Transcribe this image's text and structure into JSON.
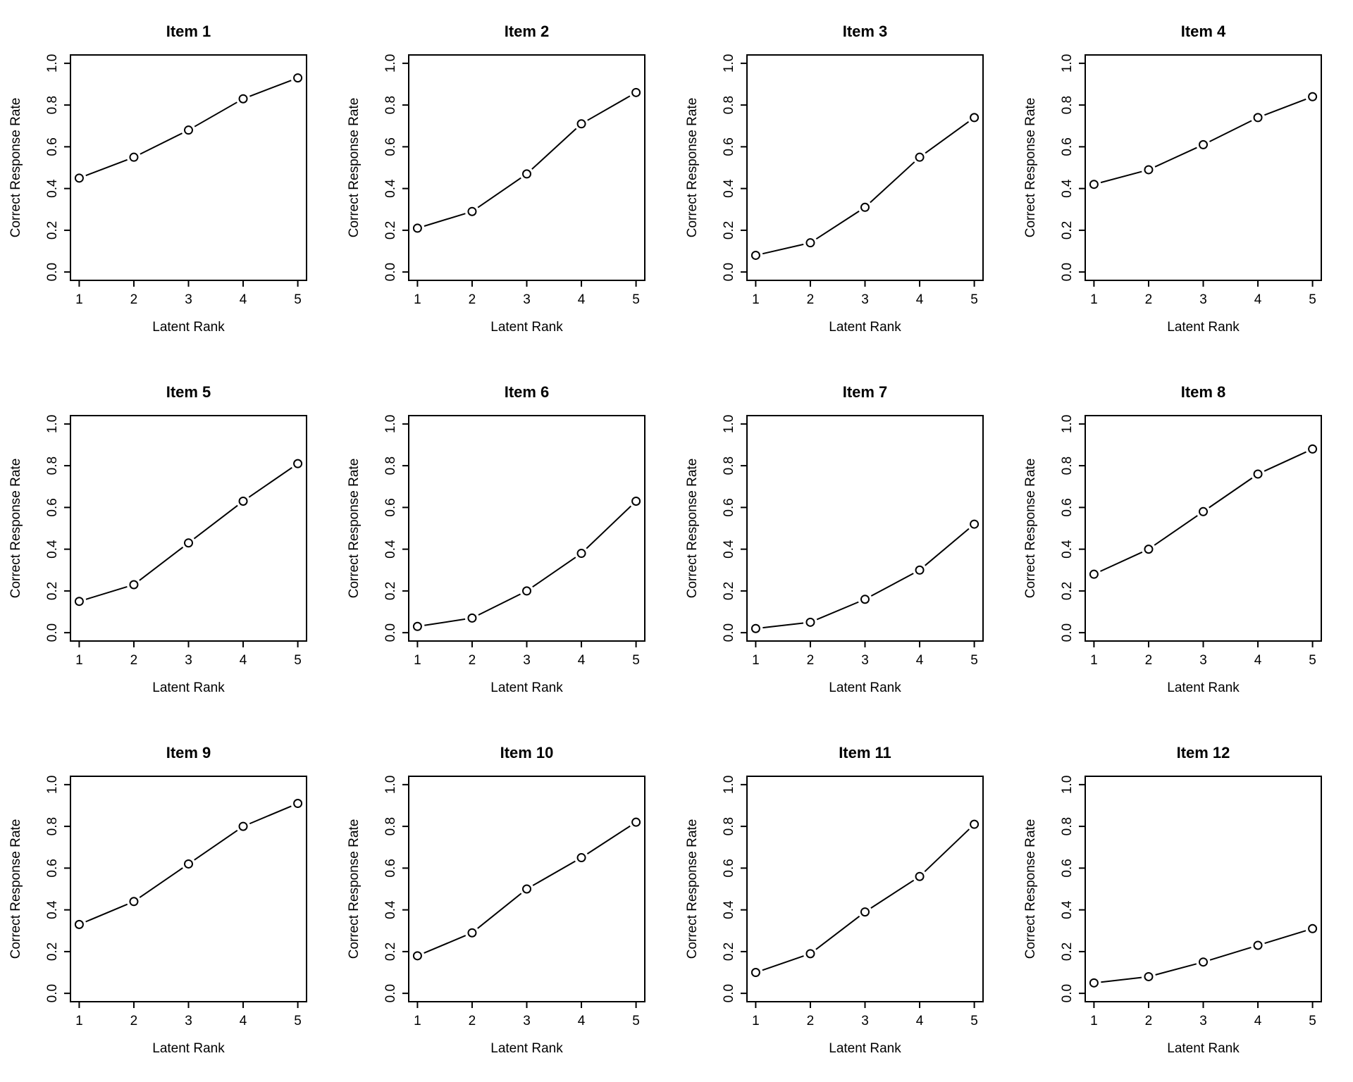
{
  "page": {
    "background": "#ffffff",
    "foreground": "#000000",
    "layout": {
      "rows": 3,
      "columns": 4
    }
  },
  "chart_data": [
    {
      "type": "line",
      "title": "Item 1",
      "xlabel": "Latent Rank",
      "ylabel": "Correct Response Rate",
      "x": [
        1,
        2,
        3,
        4,
        5
      ],
      "values": [
        0.45,
        0.55,
        0.68,
        0.83,
        0.93
      ],
      "xlim": [
        1,
        5
      ],
      "ylim": [
        0,
        1
      ],
      "xticks": [
        1,
        2,
        3,
        4,
        5
      ],
      "yticks": [
        0,
        0.2,
        0.4,
        0.6,
        0.8,
        1
      ],
      "marker": "open-circle",
      "color": "#000000",
      "grid": false
    },
    {
      "type": "line",
      "title": "Item 2",
      "xlabel": "Latent Rank",
      "ylabel": "Correct Response Rate",
      "x": [
        1,
        2,
        3,
        4,
        5
      ],
      "values": [
        0.21,
        0.29,
        0.47,
        0.71,
        0.86
      ],
      "xlim": [
        1,
        5
      ],
      "ylim": [
        0,
        1
      ],
      "xticks": [
        1,
        2,
        3,
        4,
        5
      ],
      "yticks": [
        0,
        0.2,
        0.4,
        0.6,
        0.8,
        1
      ],
      "marker": "open-circle",
      "color": "#000000",
      "grid": false
    },
    {
      "type": "line",
      "title": "Item 3",
      "xlabel": "Latent Rank",
      "ylabel": "Correct Response Rate",
      "x": [
        1,
        2,
        3,
        4,
        5
      ],
      "values": [
        0.08,
        0.14,
        0.31,
        0.55,
        0.74
      ],
      "xlim": [
        1,
        5
      ],
      "ylim": [
        0,
        1
      ],
      "xticks": [
        1,
        2,
        3,
        4,
        5
      ],
      "yticks": [
        0,
        0.2,
        0.4,
        0.6,
        0.8,
        1
      ],
      "marker": "open-circle",
      "color": "#000000",
      "grid": false
    },
    {
      "type": "line",
      "title": "Item 4",
      "xlabel": "Latent Rank",
      "ylabel": "Correct Response Rate",
      "x": [
        1,
        2,
        3,
        4,
        5
      ],
      "values": [
        0.42,
        0.49,
        0.61,
        0.74,
        0.84
      ],
      "xlim": [
        1,
        5
      ],
      "ylim": [
        0,
        1
      ],
      "xticks": [
        1,
        2,
        3,
        4,
        5
      ],
      "yticks": [
        0,
        0.2,
        0.4,
        0.6,
        0.8,
        1
      ],
      "marker": "open-circle",
      "color": "#000000",
      "grid": false
    },
    {
      "type": "line",
      "title": "Item 5",
      "xlabel": "Latent Rank",
      "ylabel": "Correct Response Rate",
      "x": [
        1,
        2,
        3,
        4,
        5
      ],
      "values": [
        0.15,
        0.23,
        0.43,
        0.63,
        0.81
      ],
      "xlim": [
        1,
        5
      ],
      "ylim": [
        0,
        1
      ],
      "xticks": [
        1,
        2,
        3,
        4,
        5
      ],
      "yticks": [
        0,
        0.2,
        0.4,
        0.6,
        0.8,
        1
      ],
      "marker": "open-circle",
      "color": "#000000",
      "grid": false
    },
    {
      "type": "line",
      "title": "Item 6",
      "xlabel": "Latent Rank",
      "ylabel": "Correct Response Rate",
      "x": [
        1,
        2,
        3,
        4,
        5
      ],
      "values": [
        0.03,
        0.07,
        0.2,
        0.38,
        0.63
      ],
      "xlim": [
        1,
        5
      ],
      "ylim": [
        0,
        1
      ],
      "xticks": [
        1,
        2,
        3,
        4,
        5
      ],
      "yticks": [
        0,
        0.2,
        0.4,
        0.6,
        0.8,
        1
      ],
      "marker": "open-circle",
      "color": "#000000",
      "grid": false
    },
    {
      "type": "line",
      "title": "Item 7",
      "xlabel": "Latent Rank",
      "ylabel": "Correct Response Rate",
      "x": [
        1,
        2,
        3,
        4,
        5
      ],
      "values": [
        0.02,
        0.05,
        0.16,
        0.3,
        0.52
      ],
      "xlim": [
        1,
        5
      ],
      "ylim": [
        0,
        1
      ],
      "xticks": [
        1,
        2,
        3,
        4,
        5
      ],
      "yticks": [
        0,
        0.2,
        0.4,
        0.6,
        0.8,
        1
      ],
      "marker": "open-circle",
      "color": "#000000",
      "grid": false
    },
    {
      "type": "line",
      "title": "Item 8",
      "xlabel": "Latent Rank",
      "ylabel": "Correct Response Rate",
      "x": [
        1,
        2,
        3,
        4,
        5
      ],
      "values": [
        0.28,
        0.4,
        0.58,
        0.76,
        0.88
      ],
      "xlim": [
        1,
        5
      ],
      "ylim": [
        0,
        1
      ],
      "xticks": [
        1,
        2,
        3,
        4,
        5
      ],
      "yticks": [
        0,
        0.2,
        0.4,
        0.6,
        0.8,
        1
      ],
      "marker": "open-circle",
      "color": "#000000",
      "grid": false
    },
    {
      "type": "line",
      "title": "Item 9",
      "xlabel": "Latent Rank",
      "ylabel": "Correct Response Rate",
      "x": [
        1,
        2,
        3,
        4,
        5
      ],
      "values": [
        0.33,
        0.44,
        0.62,
        0.8,
        0.91
      ],
      "xlim": [
        1,
        5
      ],
      "ylim": [
        0,
        1
      ],
      "xticks": [
        1,
        2,
        3,
        4,
        5
      ],
      "yticks": [
        0,
        0.2,
        0.4,
        0.6,
        0.8,
        1
      ],
      "marker": "open-circle",
      "color": "#000000",
      "grid": false
    },
    {
      "type": "line",
      "title": "Item 10",
      "xlabel": "Latent Rank",
      "ylabel": "Correct Response Rate",
      "x": [
        1,
        2,
        3,
        4,
        5
      ],
      "values": [
        0.18,
        0.29,
        0.5,
        0.65,
        0.82
      ],
      "xlim": [
        1,
        5
      ],
      "ylim": [
        0,
        1
      ],
      "xticks": [
        1,
        2,
        3,
        4,
        5
      ],
      "yticks": [
        0,
        0.2,
        0.4,
        0.6,
        0.8,
        1
      ],
      "marker": "open-circle",
      "color": "#000000",
      "grid": false
    },
    {
      "type": "line",
      "title": "Item 11",
      "xlabel": "Latent Rank",
      "ylabel": "Correct Response Rate",
      "x": [
        1,
        2,
        3,
        4,
        5
      ],
      "values": [
        0.1,
        0.19,
        0.39,
        0.56,
        0.81
      ],
      "xlim": [
        1,
        5
      ],
      "ylim": [
        0,
        1
      ],
      "xticks": [
        1,
        2,
        3,
        4,
        5
      ],
      "yticks": [
        0,
        0.2,
        0.4,
        0.6,
        0.8,
        1
      ],
      "marker": "open-circle",
      "color": "#000000",
      "grid": false
    },
    {
      "type": "line",
      "title": "Item 12",
      "xlabel": "Latent Rank",
      "ylabel": "Correct Response Rate",
      "x": [
        1,
        2,
        3,
        4,
        5
      ],
      "values": [
        0.05,
        0.08,
        0.15,
        0.23,
        0.31
      ],
      "xlim": [
        1,
        5
      ],
      "ylim": [
        0,
        1
      ],
      "xticks": [
        1,
        2,
        3,
        4,
        5
      ],
      "yticks": [
        0,
        0.2,
        0.4,
        0.6,
        0.8,
        1
      ],
      "marker": "open-circle",
      "color": "#000000",
      "grid": false
    }
  ]
}
